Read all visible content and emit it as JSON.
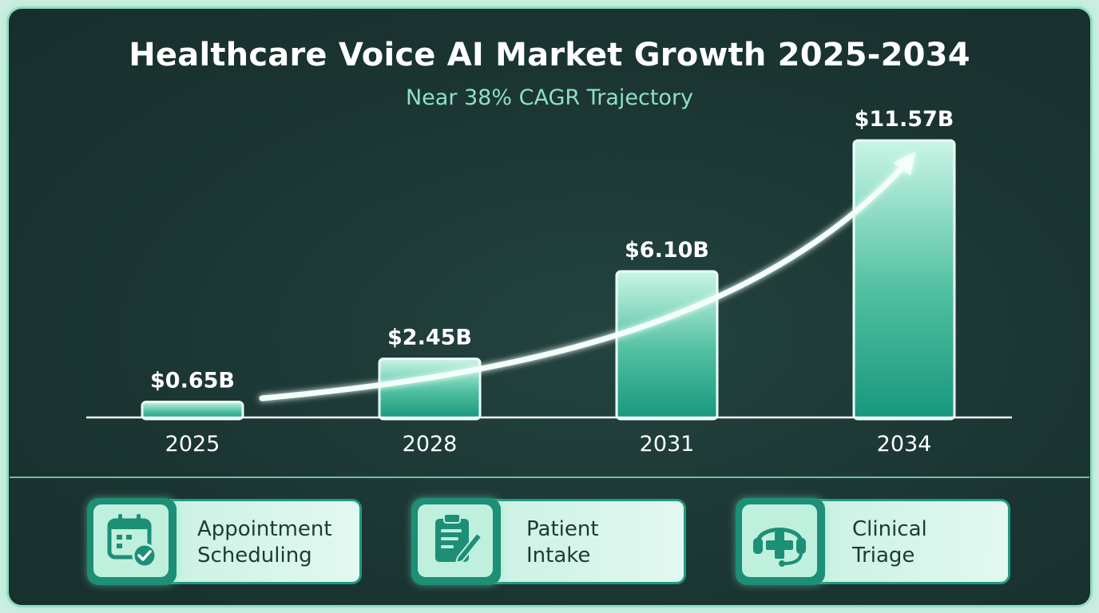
{
  "colors": {
    "background": "#1b3533",
    "accent": "#1f9a80",
    "bar_top": "#c9f5e6",
    "bar_bottom": "#17977d",
    "subtitle": "#8fe0c4"
  },
  "chart_data": {
    "type": "bar",
    "title": "Healthcare Voice AI Market Growth 2025-2034",
    "subtitle": "Near 38% CAGR Trajectory",
    "categories": [
      "2025",
      "2028",
      "2031",
      "2034"
    ],
    "values": [
      0.65,
      2.45,
      6.1,
      11.57
    ],
    "data_labels": [
      "$0.65B",
      "$2.45B",
      "$6.10B",
      "$11.57B"
    ],
    "unit": "USD billions",
    "ylim": [
      0,
      11.57
    ],
    "grid": false,
    "trend_arrow": true
  },
  "use_cases": [
    {
      "icon": "calendar-check-icon",
      "line1": "Appointment",
      "line2": "Scheduling"
    },
    {
      "icon": "clipboard-pen-icon",
      "line1": "Patient",
      "line2": "Intake"
    },
    {
      "icon": "medical-headset-icon",
      "line1": "Clinical",
      "line2": "Triage"
    }
  ]
}
